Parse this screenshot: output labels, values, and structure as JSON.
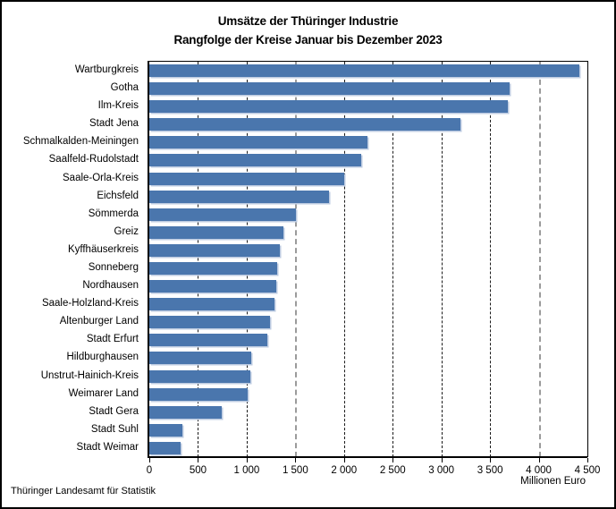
{
  "header": {
    "title_line1": "Umsätze der Thüringer Industrie",
    "title_line2": "Rangfolge der Kreise Januar bis Dezember 2023"
  },
  "footer": {
    "source": "Thüringer Landesamt für Statistik"
  },
  "chart_data": {
    "type": "bar",
    "orientation": "horizontal",
    "title": "Umsätze der Thüringer Industrie",
    "subtitle": "Rangfolge der Kreise Januar bis Dezember 2023",
    "xlabel": "Millionen Euro",
    "ylabel": "",
    "xlim": [
      0,
      4500
    ],
    "x_ticks": [
      0,
      500,
      1000,
      1500,
      2000,
      2500,
      3000,
      3500,
      4000,
      4500
    ],
    "x_tick_labels": [
      "0",
      "500",
      "1 000",
      "1 500",
      "2 000",
      "2 500",
      "3 000",
      "3 500",
      "4 000",
      "4 500"
    ],
    "grid": "vertical-dashed",
    "gray_gridlines": [
      1500,
      4000
    ],
    "legend": "none",
    "bar_color": "#4a76ad",
    "bar_highlight_color": "#bdcbe1",
    "categories": [
      "Wartburgkreis",
      "Gotha",
      "Ilm-Kreis",
      "Stadt Jena",
      "Schmalkalden-Meiningen",
      "Saalfeld-Rudolstadt",
      "Saale-Orla-Kreis",
      "Eichsfeld",
      "Sömmerda",
      "Greiz",
      "Kyffhäuserkreis",
      "Sonneberg",
      "Nordhausen",
      "Saale-Holzland-Kreis",
      "Altenburger Land",
      "Stadt Erfurt",
      "Hildburghausen",
      "Unstrut-Hainich-Kreis",
      "Weimarer Land",
      "Stadt Gera",
      "Stadt Suhl",
      "Stadt Weimar"
    ],
    "values": [
      4420,
      3700,
      3680,
      3200,
      2240,
      2180,
      2000,
      1850,
      1510,
      1380,
      1340,
      1310,
      1300,
      1290,
      1240,
      1210,
      1050,
      1040,
      1010,
      740,
      340,
      320
    ]
  }
}
